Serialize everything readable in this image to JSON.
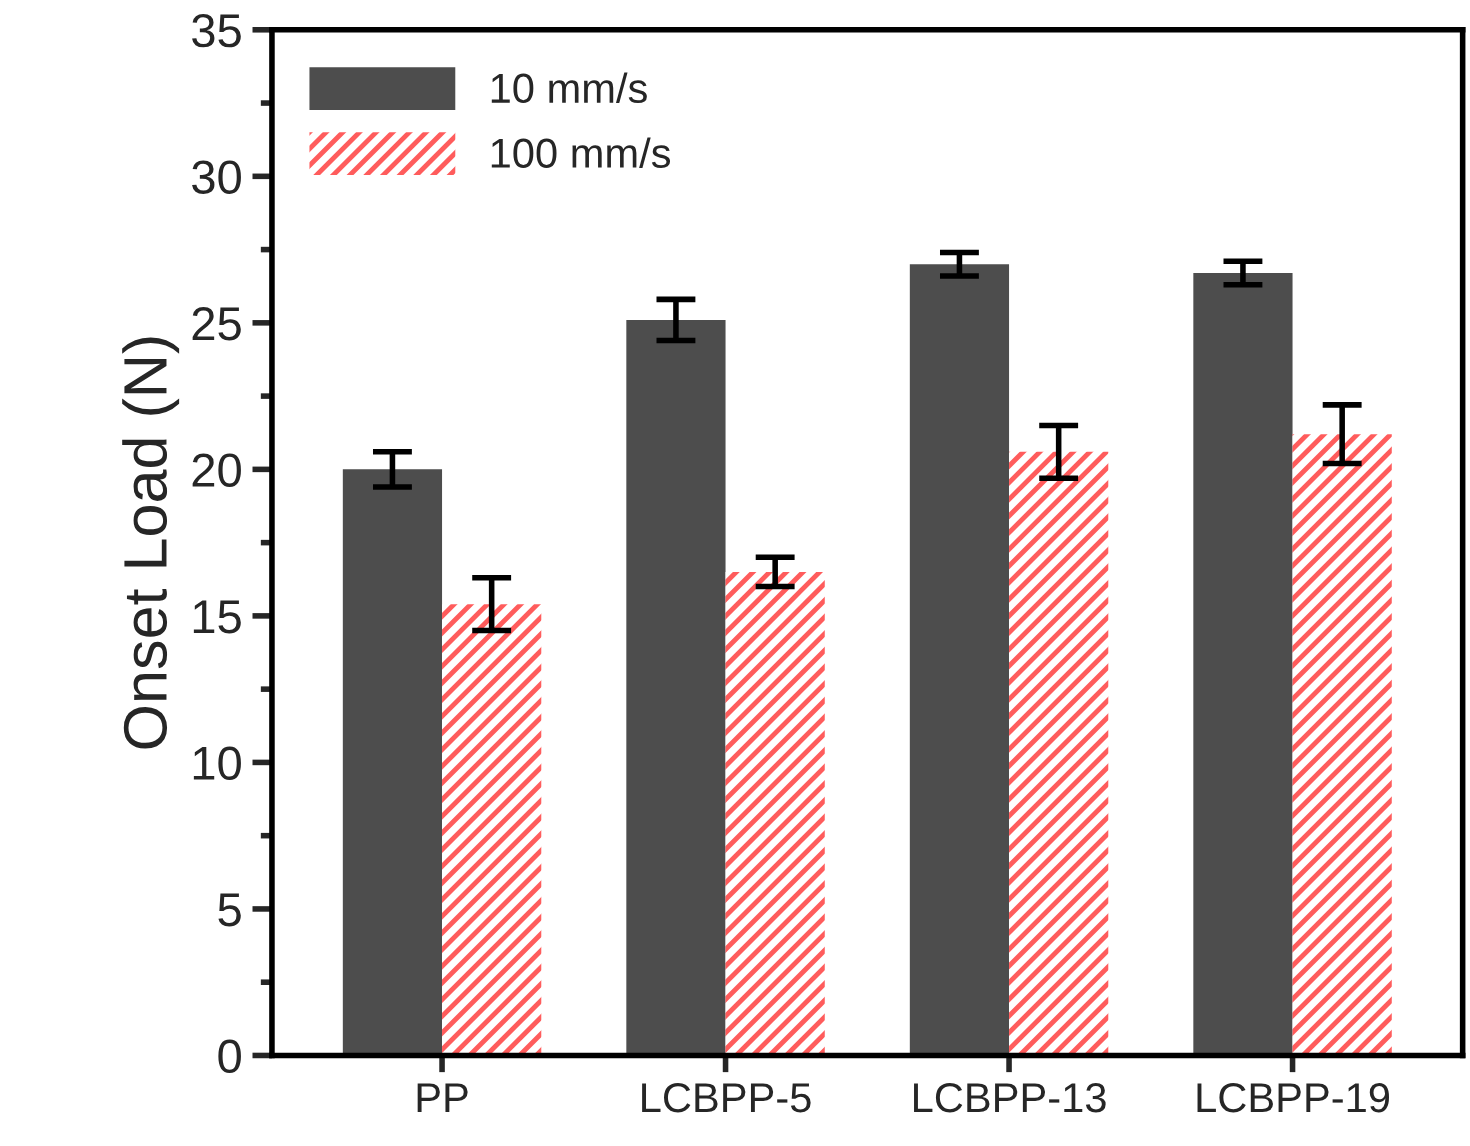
{
  "chart_data": {
    "type": "bar",
    "ylabel": "Onset Load (N)",
    "categories": [
      "PP",
      "LCBPP-5",
      "LCBPP-13",
      "LCBPP-19"
    ],
    "series": [
      {
        "name": "10 mm/s",
        "color": "#4d4d4d",
        "values": [
          20.0,
          25.1,
          27.0,
          26.7
        ],
        "errors": [
          0.6,
          0.7,
          0.4,
          0.4
        ]
      },
      {
        "name": "100 mm/s",
        "color": "#ff5c5c",
        "values": [
          15.4,
          16.5,
          20.6,
          21.2
        ],
        "errors": [
          0.9,
          0.5,
          0.9,
          1.0
        ]
      }
    ],
    "ylim": [
      0,
      35
    ],
    "yticks": [
      0,
      {
        "value": 2.5,
        "label": null
      },
      5,
      {
        "value": 7.5,
        "label": null
      },
      10,
      {
        "value": 12.5,
        "label": null
      },
      15,
      {
        "value": 17.5,
        "label": null
      },
      20,
      {
        "value": 22.5,
        "label": null
      },
      25,
      {
        "value": 27.5,
        "label": null
      },
      30,
      {
        "value": 32.5,
        "label": null
      },
      35
    ],
    "grid": false,
    "legend": "top left"
  }
}
